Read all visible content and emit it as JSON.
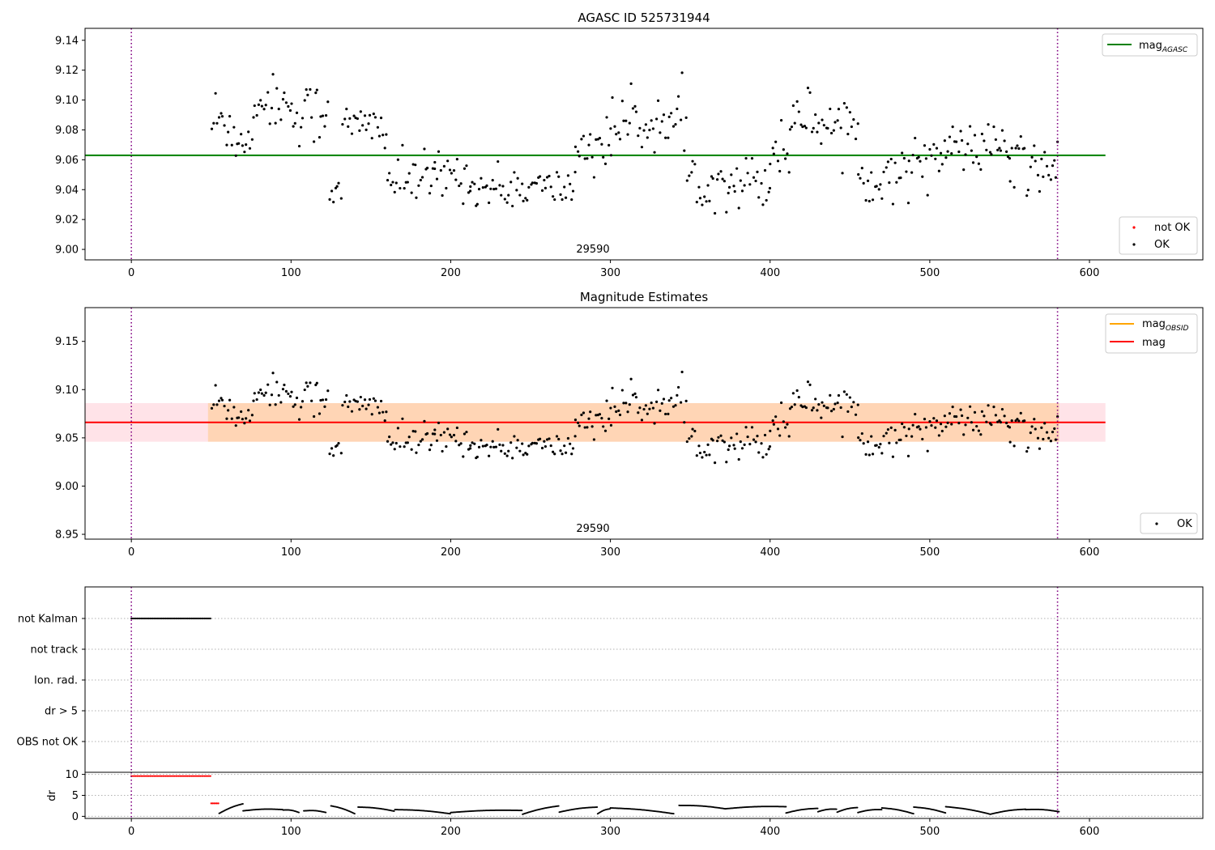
{
  "colors": {
    "ok": "#000000",
    "not_ok": "#ff0000",
    "agasc": "#008000",
    "obsid": "#ffa500",
    "mag": "#ff0000",
    "band1": "#ffc0cb",
    "band2": "#ffa500",
    "vline": "#800080",
    "grid": "#b0b0b0"
  },
  "chart_data": [
    {
      "type": "scatter",
      "title": "AGASC ID 525731944",
      "xlim": [
        -29,
        671
      ],
      "ylim": [
        8.993,
        9.148
      ],
      "xticks": [
        "0",
        "100",
        "200",
        "300",
        "400",
        "500",
        "600"
      ],
      "yticks": [
        "9.00",
        "9.02",
        "9.04",
        "9.06",
        "9.08",
        "9.10",
        "9.12",
        "9.14"
      ],
      "obsid_label": "29590",
      "vlines_x": [
        0,
        580
      ],
      "hline": {
        "name": "mag_AGASC",
        "y": 9.063
      },
      "series": [
        {
          "name": "not OK",
          "values": []
        },
        {
          "name": "OK",
          "note": "black points, per-observation magnitude, ~500 points from x≈50 to x≈580"
        }
      ],
      "segments": [
        [
          50,
          66,
          9.085,
          0.014
        ],
        [
          66,
          76,
          9.072,
          0.006
        ],
        [
          76,
          100,
          9.099,
          0.009
        ],
        [
          100,
          124,
          9.091,
          0.011
        ],
        [
          124,
          132,
          9.045,
          0.01
        ],
        [
          132,
          160,
          9.082,
          0.008
        ],
        [
          160,
          190,
          9.046,
          0.009
        ],
        [
          190,
          212,
          9.05,
          0.008
        ],
        [
          212,
          278,
          9.041,
          0.007
        ],
        [
          278,
          300,
          9.07,
          0.01
        ],
        [
          300,
          348,
          9.084,
          0.009
        ],
        [
          348,
          400,
          9.046,
          0.009
        ],
        [
          400,
          412,
          9.066,
          0.01
        ],
        [
          412,
          428,
          9.09,
          0.009
        ],
        [
          428,
          455,
          9.085,
          0.01
        ],
        [
          455,
          487,
          9.048,
          0.008
        ],
        [
          487,
          512,
          9.063,
          0.008
        ],
        [
          512,
          550,
          9.068,
          0.008
        ],
        [
          550,
          581,
          9.055,
          0.012
        ]
      ],
      "legends": [
        {
          "position": "upper right",
          "items": [
            {
              "label": "mag",
              "sub": "AGASC",
              "kind": "line",
              "color": "#008000"
            }
          ]
        },
        {
          "position": "lower right",
          "items": [
            {
              "label": "not OK",
              "kind": "dot",
              "color": "#ff0000"
            },
            {
              "label": "OK",
              "kind": "dot",
              "color": "#000000"
            }
          ]
        }
      ]
    },
    {
      "type": "scatter",
      "title": "Magnitude Estimates",
      "xlim": [
        -29,
        671
      ],
      "ylim": [
        8.945,
        9.185
      ],
      "xticks": [
        "0",
        "100",
        "200",
        "300",
        "400",
        "500",
        "600"
      ],
      "yticks": [
        "8.95",
        "9.00",
        "9.05",
        "9.10",
        "9.15"
      ],
      "obsid_label": "29590",
      "vlines_x": [
        0,
        580
      ],
      "mag": 9.066,
      "band_pink": [
        9.046,
        9.086
      ],
      "band_orange": [
        9.046,
        9.086
      ],
      "band_x": [
        -29,
        610
      ],
      "legends": [
        {
          "position": "upper right",
          "items": [
            {
              "label": "mag",
              "sub": "OBSID",
              "kind": "line",
              "color": "#ffa500"
            },
            {
              "label": "mag",
              "kind": "line",
              "color": "#ff0000"
            }
          ]
        },
        {
          "position": "lower right",
          "items": [
            {
              "label": "OK",
              "kind": "dot",
              "color": "#000000"
            }
          ]
        }
      ]
    },
    {
      "type": "scatter",
      "title": "",
      "xlim": [
        -29,
        671
      ],
      "categories": [
        "not Kalman",
        "not track",
        "Ion. rad.",
        "dr > 5",
        "OBS not OK"
      ],
      "flags": [
        {
          "category": "not Kalman",
          "x_range": [
            0,
            50
          ]
        }
      ],
      "vlines_x": [
        0,
        580
      ]
    },
    {
      "type": "scatter",
      "title": "",
      "ylabel": "dr",
      "xlim": [
        -29,
        671
      ],
      "ylim": [
        -0.5,
        10.5
      ],
      "xticks": [
        "0",
        "100",
        "200",
        "300",
        "400",
        "500",
        "600"
      ],
      "yticks": [
        "0",
        "5",
        "10"
      ],
      "vlines_x": [
        0,
        580
      ],
      "dr_red": [
        {
          "x_range": [
            0,
            50
          ],
          "y": 9.6
        },
        {
          "x_range": [
            50,
            55
          ],
          "y": 3.1
        }
      ],
      "dr_black_arcs": [
        [
          55,
          70,
          0.7,
          3.0
        ],
        [
          70,
          95,
          1.3,
          1.6
        ],
        [
          95,
          105,
          1.5,
          0.9
        ],
        [
          108,
          122,
          1.3,
          0.9
        ],
        [
          125,
          140,
          2.5,
          0.6
        ],
        [
          142,
          165,
          2.2,
          1.2
        ],
        [
          165,
          200,
          1.6,
          0.6
        ],
        [
          200,
          245,
          0.9,
          1.4
        ],
        [
          245,
          268,
          0.5,
          2.5
        ],
        [
          268,
          292,
          1.0,
          2.2
        ],
        [
          292,
          300,
          0.6,
          1.8
        ],
        [
          300,
          340,
          2.0,
          0.6
        ],
        [
          343,
          372,
          2.6,
          1.8
        ],
        [
          372,
          410,
          1.8,
          2.3
        ],
        [
          410,
          430,
          0.8,
          1.9
        ],
        [
          430,
          442,
          1.1,
          1.7
        ],
        [
          442,
          455,
          1.0,
          2.1
        ],
        [
          455,
          470,
          0.9,
          1.6
        ],
        [
          470,
          490,
          2.0,
          0.6
        ],
        [
          490,
          510,
          2.2,
          0.8
        ],
        [
          510,
          538,
          2.3,
          0.5
        ],
        [
          538,
          560,
          0.5,
          1.7
        ],
        [
          560,
          581,
          1.6,
          1.1
        ]
      ]
    }
  ]
}
